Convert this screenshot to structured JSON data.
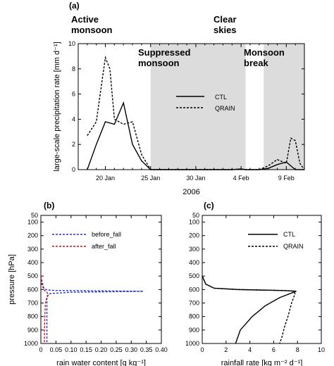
{
  "figure": {
    "panels": [
      "(a)",
      "(b)",
      "(c)"
    ]
  },
  "chart_data": [
    {
      "id": "a",
      "type": "line",
      "panel_label": "(a)",
      "ylabel": "large-scale precipitation rate [mm d⁻¹]",
      "xlabel": "2006",
      "ylim": [
        0,
        10
      ],
      "yticks": [
        0,
        2,
        4,
        6,
        8,
        10
      ],
      "xlim": [
        17,
        42
      ],
      "xticks": [
        {
          "pos": 20,
          "label": "20 Jan"
        },
        {
          "pos": 25,
          "label": "25 Jan"
        },
        {
          "pos": 30,
          "label": "30 Jan"
        },
        {
          "pos": 35,
          "label": "4 Feb"
        },
        {
          "pos": 40,
          "label": "9 Feb"
        }
      ],
      "shaded_periods": [
        {
          "from": 25,
          "to": 35.5
        },
        {
          "from": 37.5,
          "to": 42
        }
      ],
      "annotations": [
        {
          "text": "Active\nmonsoon",
          "x": 18.2,
          "y_above": true
        },
        {
          "text": "Clear\nskies",
          "x": 34.5,
          "y_above": true
        },
        {
          "text": "Suppressed\nmonsoon",
          "x": 25.0,
          "y": 9.3
        },
        {
          "text": "Monsoon\nbreak",
          "x": 37.8,
          "y": 9.3
        }
      ],
      "legend": [
        "CTL",
        "QRAIN"
      ],
      "series": [
        {
          "name": "CTL",
          "style": "solid",
          "x": [
            18,
            19,
            20,
            21,
            22,
            23,
            24,
            25,
            26,
            30,
            34,
            35,
            35.5,
            37,
            38,
            39,
            40,
            41,
            42
          ],
          "y": [
            0,
            2.0,
            3.8,
            3.6,
            5.3,
            2.0,
            0.7,
            0,
            0,
            0,
            0,
            0.05,
            0,
            0,
            0.1,
            0.4,
            0.6,
            0,
            0
          ]
        },
        {
          "name": "QRAIN",
          "style": "dashed",
          "x": [
            18,
            19,
            20,
            20.5,
            21,
            22,
            23,
            24,
            25,
            26,
            30,
            34,
            35,
            35.5,
            37,
            38,
            39,
            40,
            40.5,
            41,
            41.5,
            42
          ],
          "y": [
            2.7,
            3.8,
            8.9,
            8.0,
            4.0,
            3.6,
            3.8,
            1.2,
            0,
            0,
            0,
            0,
            0.05,
            0,
            0,
            0.3,
            0.8,
            0.5,
            2.5,
            2.3,
            0.5,
            0
          ]
        }
      ]
    },
    {
      "id": "b",
      "type": "line",
      "panel_label": "(b)",
      "xlabel": "rain water content [g kg⁻¹]",
      "ylabel": "pressure [hPa]",
      "xlim": [
        0,
        0.4
      ],
      "xticks": [
        0,
        0.05,
        0.1,
        0.15,
        0.2,
        0.25,
        0.3,
        0.35,
        0.4
      ],
      "xticklabels": [
        "0",
        "0.05",
        "0.10",
        "0.15",
        "0.20",
        "0.25",
        "0.30",
        "0.35",
        "0.40"
      ],
      "ylim": [
        1000,
        50
      ],
      "yticks": [
        50,
        100,
        200,
        300,
        400,
        500,
        600,
        700,
        800,
        900,
        1000
      ],
      "legend": [
        "before_fall",
        "after_fall"
      ],
      "series": [
        {
          "name": "before_fall",
          "color": "#2233cc",
          "style": "dashed",
          "x": [
            0,
            0.005,
            0.01,
            0.02,
            0.05,
            0.2,
            0.34,
            0.1,
            0.03,
            0.02,
            0.02,
            0.02,
            0.02
          ],
          "y": [
            500,
            550,
            590,
            603,
            607,
            610,
            613,
            620,
            630,
            650,
            750,
            900,
            1000
          ]
        },
        {
          "name": "after_fall",
          "color": "#cc1111",
          "style": "dashed",
          "x": [
            0,
            0.003,
            0.01,
            0.015,
            0.02,
            0.025,
            0.02,
            0.015,
            0.013,
            0.012,
            0.012
          ],
          "y": [
            500,
            560,
            600,
            612,
            620,
            640,
            660,
            700,
            800,
            900,
            1000
          ]
        }
      ]
    },
    {
      "id": "c",
      "type": "line",
      "panel_label": "(c)",
      "xlabel": "rainfall rate [kg m⁻² d⁻¹]",
      "ylabel": "",
      "xlim": [
        0,
        10
      ],
      "xticks": [
        0,
        2,
        4,
        6,
        8,
        10
      ],
      "ylim": [
        1000,
        50
      ],
      "yticks": [
        50,
        100,
        200,
        300,
        400,
        500,
        600,
        700,
        800,
        900,
        1000
      ],
      "legend": [
        "CTL",
        "QRAIN"
      ],
      "series": [
        {
          "name": "CTL",
          "style": "solid",
          "x": [
            0,
            0.3,
            1.0,
            3.0,
            7.0,
            7.9,
            6.5,
            5.3,
            4.2,
            3.2,
            2.8
          ],
          "y": [
            500,
            560,
            590,
            600,
            608,
            612,
            660,
            720,
            800,
            900,
            1000
          ]
        },
        {
          "name": "QRAIN",
          "style": "dashed",
          "x": [
            0,
            0.3,
            1.0,
            3.0,
            7.0,
            7.6,
            7.8,
            7.5,
            7.2,
            6.9,
            6.7,
            6.5
          ],
          "y": [
            500,
            560,
            590,
            600,
            607,
            612,
            630,
            700,
            800,
            880,
            950,
            1000
          ]
        }
      ]
    }
  ]
}
